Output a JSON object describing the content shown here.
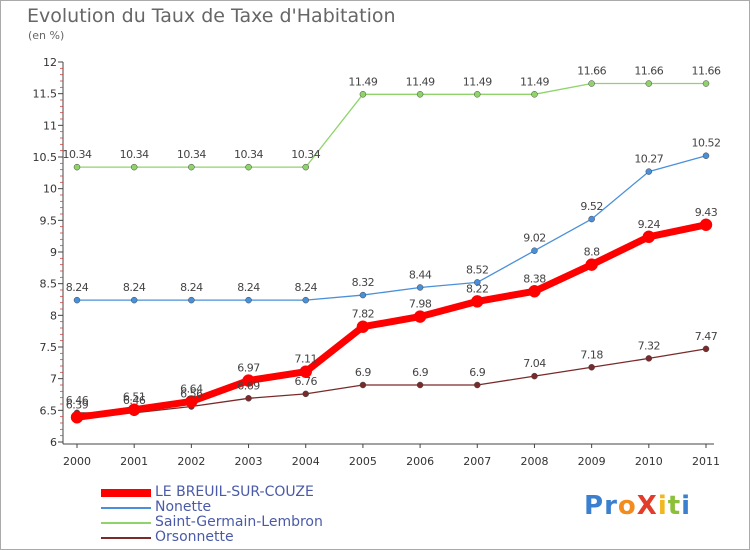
{
  "title": "Evolution du Taux de Taxe d'Habitation",
  "unit_label": "(en %)",
  "logo_text": "ProXiti",
  "chart_data": {
    "type": "line",
    "title": "Evolution du Taux de Taxe d'Habitation",
    "ylabel": "(en %)",
    "x": [
      "2000",
      "2001",
      "2002",
      "2003",
      "2004",
      "2005",
      "2006",
      "2007",
      "2008",
      "2009",
      "2010",
      "2011"
    ],
    "ylim": [
      6,
      12
    ],
    "yticks": [
      "6",
      "6.5",
      "7",
      "7.5",
      "8",
      "8.5",
      "9",
      "9.5",
      "10",
      "10.5",
      "11",
      "11.5",
      "12"
    ],
    "grid": false,
    "legend_position": "bottom-left",
    "series": [
      {
        "name": "LE BREUIL-SUR-COUZE",
        "color": "#ff0000",
        "values": [
          6.39,
          6.51,
          6.64,
          6.97,
          7.11,
          7.82,
          7.98,
          8.22,
          8.38,
          8.8,
          9.24,
          9.43
        ],
        "labels": [
          "6.39",
          "6.51",
          "6.64",
          "6.97",
          "7.11",
          "7.82",
          "7.98",
          "8.22",
          "8.38",
          "8.8",
          "9.24",
          "9.43"
        ]
      },
      {
        "name": "Nonette",
        "color": "#4a90d9",
        "values": [
          8.24,
          8.24,
          8.24,
          8.24,
          8.24,
          8.32,
          8.44,
          8.52,
          9.02,
          9.52,
          10.27,
          10.52
        ],
        "labels": [
          "8.24",
          "8.24",
          "8.24",
          "8.24",
          "8.24",
          "8.32",
          "8.44",
          "8.52",
          "9.02",
          "9.52",
          "10.27",
          "10.52"
        ]
      },
      {
        "name": "Saint-Germain-Lembron",
        "color": "#8fd46b",
        "values": [
          10.34,
          10.34,
          10.34,
          10.34,
          10.34,
          11.49,
          11.49,
          11.49,
          11.49,
          11.66,
          11.66,
          11.66
        ],
        "labels": [
          "10.34",
          "10.34",
          "10.34",
          "10.34",
          "10.34",
          "11.49",
          "11.49",
          "11.49",
          "11.49",
          "11.66",
          "11.66",
          "11.66"
        ]
      },
      {
        "name": "Orsonnette",
        "color": "#7a2a2a",
        "values": [
          6.46,
          6.46,
          6.56,
          6.69,
          6.76,
          6.9,
          6.9,
          6.9,
          7.04,
          7.18,
          7.32,
          7.47
        ],
        "labels": [
          "6.46",
          "6.46",
          "6.56",
          "6.69",
          "6.76",
          "6.9",
          "6.9",
          "6.9",
          "7.04",
          "7.18",
          "7.32",
          "7.47"
        ]
      }
    ]
  }
}
